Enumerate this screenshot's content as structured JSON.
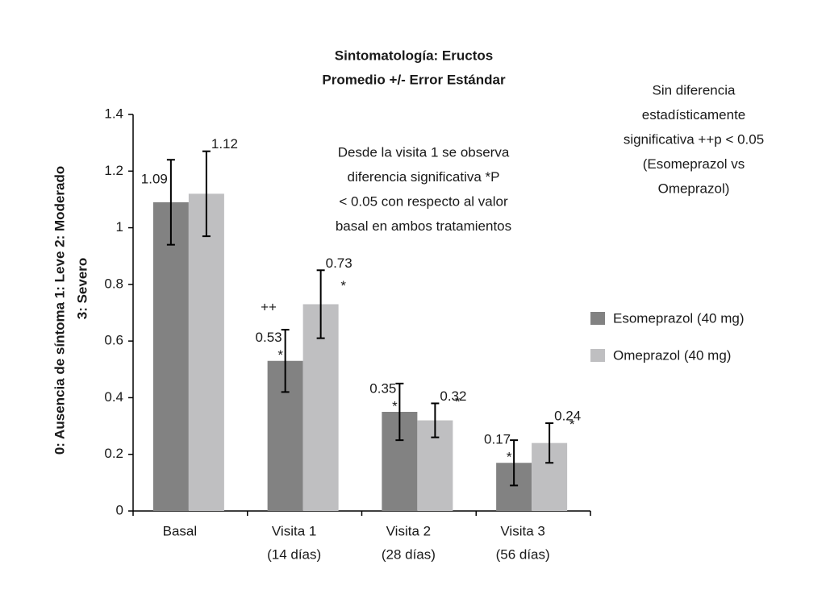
{
  "chart_data": {
    "type": "bar",
    "title": [
      "Sintomatología: Eructos",
      "Promedio +/- Error Estándar"
    ],
    "ylabel": [
      "0: Ausencia de síntoma    1: Leve    2: Moderado",
      "3: Severo"
    ],
    "categories": [
      [
        "Basal"
      ],
      [
        "Visita 1",
        "(14 días)"
      ],
      [
        "Visita 2",
        "(28 días)"
      ],
      [
        "Visita 3",
        "(56 días)"
      ]
    ],
    "series": [
      {
        "name": "Esomeprazol (40 mg)",
        "color": "#828282",
        "values": [
          1.09,
          0.53,
          0.35,
          0.17
        ],
        "errors": [
          0.15,
          0.11,
          0.1,
          0.08
        ],
        "markers": [
          null,
          "*",
          "*",
          "*"
        ]
      },
      {
        "name": "Omeprazol (40 mg)",
        "color": "#bfbfc1",
        "values": [
          1.12,
          0.73,
          0.32,
          0.24
        ],
        "errors": [
          0.15,
          0.12,
          0.06,
          0.07
        ],
        "markers": [
          null,
          "*",
          "*",
          "*"
        ]
      }
    ],
    "between_marker": "++",
    "ylim": [
      0,
      1.4
    ],
    "yticks": [
      0,
      0.2,
      0.4,
      0.6,
      0.8,
      1,
      1.2,
      1.4
    ],
    "annotations": [
      [
        "Desde la visita 1 se observa",
        "diferencia significativa *P",
        "< 0.05 con respecto al valor",
        "basal en ambos tratamientos"
      ],
      [
        "Sin diferencia",
        "estadísticamente",
        "significativa ++p < 0.05",
        "(Esomeprazol vs",
        "Omeprazol)"
      ]
    ]
  }
}
